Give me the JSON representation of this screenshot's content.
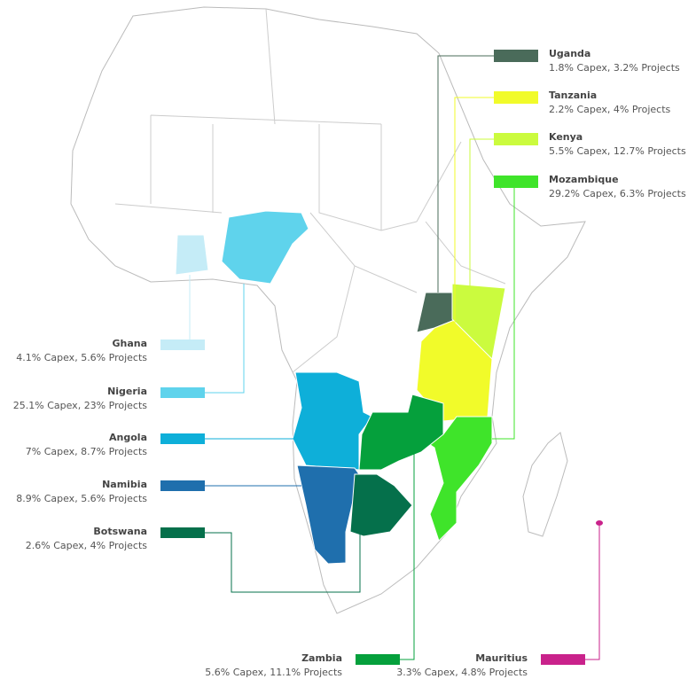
{
  "countries": [
    {
      "name": "Uganda",
      "detail": "1.8% Capex, 3.2% Projects",
      "color": "#4a6b5a"
    },
    {
      "name": "Tanzania",
      "detail": "2.2% Capex, 4% Projects",
      "color": "#f1fb2a"
    },
    {
      "name": "Kenya",
      "detail": "5.5% Capex, 12.7% Projects",
      "color": "#cbfb3e"
    },
    {
      "name": "Mozambique",
      "detail": "29.2% Capex, 6.3% Projects",
      "color": "#3fe42a"
    },
    {
      "name": "Ghana",
      "detail": "4.1% Capex, 5.6% Projects",
      "color": "#c5ecf7"
    },
    {
      "name": "Nigeria",
      "detail": "25.1% Capex, 23% Projects",
      "color": "#5fd3ec"
    },
    {
      "name": "Angola",
      "detail": "7% Capex, 8.7% Projects",
      "color": "#0eafd9"
    },
    {
      "name": "Namibia",
      "detail": "8.9% Capex, 5.6% Projects",
      "color": "#1f6fad"
    },
    {
      "name": "Botswana",
      "detail": "2.6% Capex, 4% Projects",
      "color": "#05704b"
    },
    {
      "name": "Zambia",
      "detail": "5.6% Capex, 11.1% Projects",
      "color": "#05a03c"
    },
    {
      "name": "Mauritius",
      "detail": "3.3% Capex, 4.8% Projects",
      "color": "#c9228b"
    }
  ]
}
